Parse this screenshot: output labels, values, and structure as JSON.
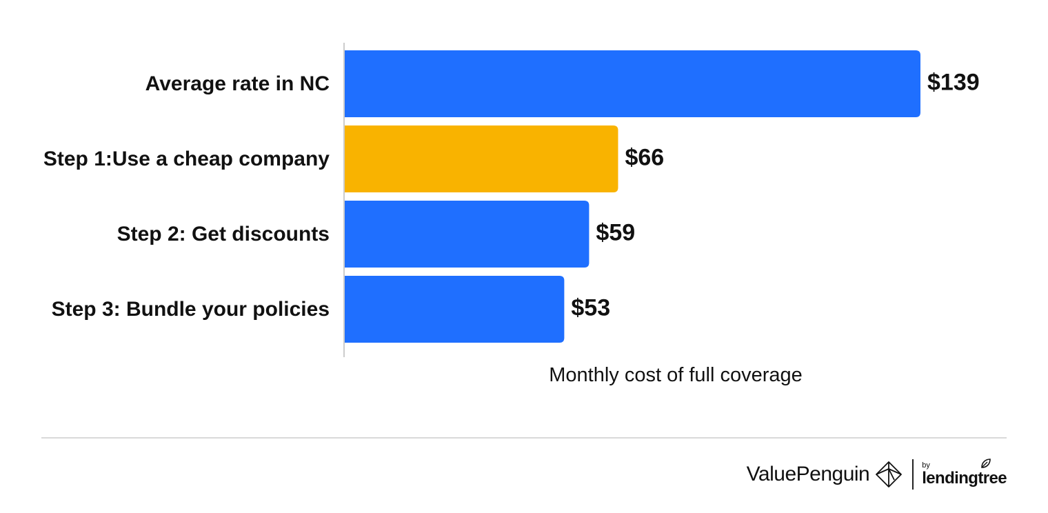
{
  "chart_data": {
    "type": "bar",
    "orientation": "horizontal",
    "categories": [
      "Average rate in NC",
      "Step 1:Use a cheap company",
      "Step 2: Get discounts",
      "Step 3: Bundle your policies"
    ],
    "values": [
      139,
      66,
      59,
      53
    ],
    "value_labels": [
      "$139",
      "$66",
      "$59",
      "$53"
    ],
    "bar_colors": [
      "#1f6fff",
      "#f9b300",
      "#1f6fff",
      "#1f6fff"
    ],
    "xlabel": "Monthly cost of full coverage",
    "ylabel": "",
    "xlim": [
      0,
      160
    ],
    "grid": false,
    "legend": "none"
  },
  "footer": {
    "brand": "ValuePenguin",
    "brand_icon": "valuepenguin-logo-icon",
    "by": "by",
    "partner": "lendingtree",
    "partner_icon": "leaf-icon"
  },
  "colors": {
    "primary": "#1f6fff",
    "highlight": "#f9b300",
    "text": "#111111",
    "axis": "#cccccc",
    "divider": "#d9d9d9"
  }
}
